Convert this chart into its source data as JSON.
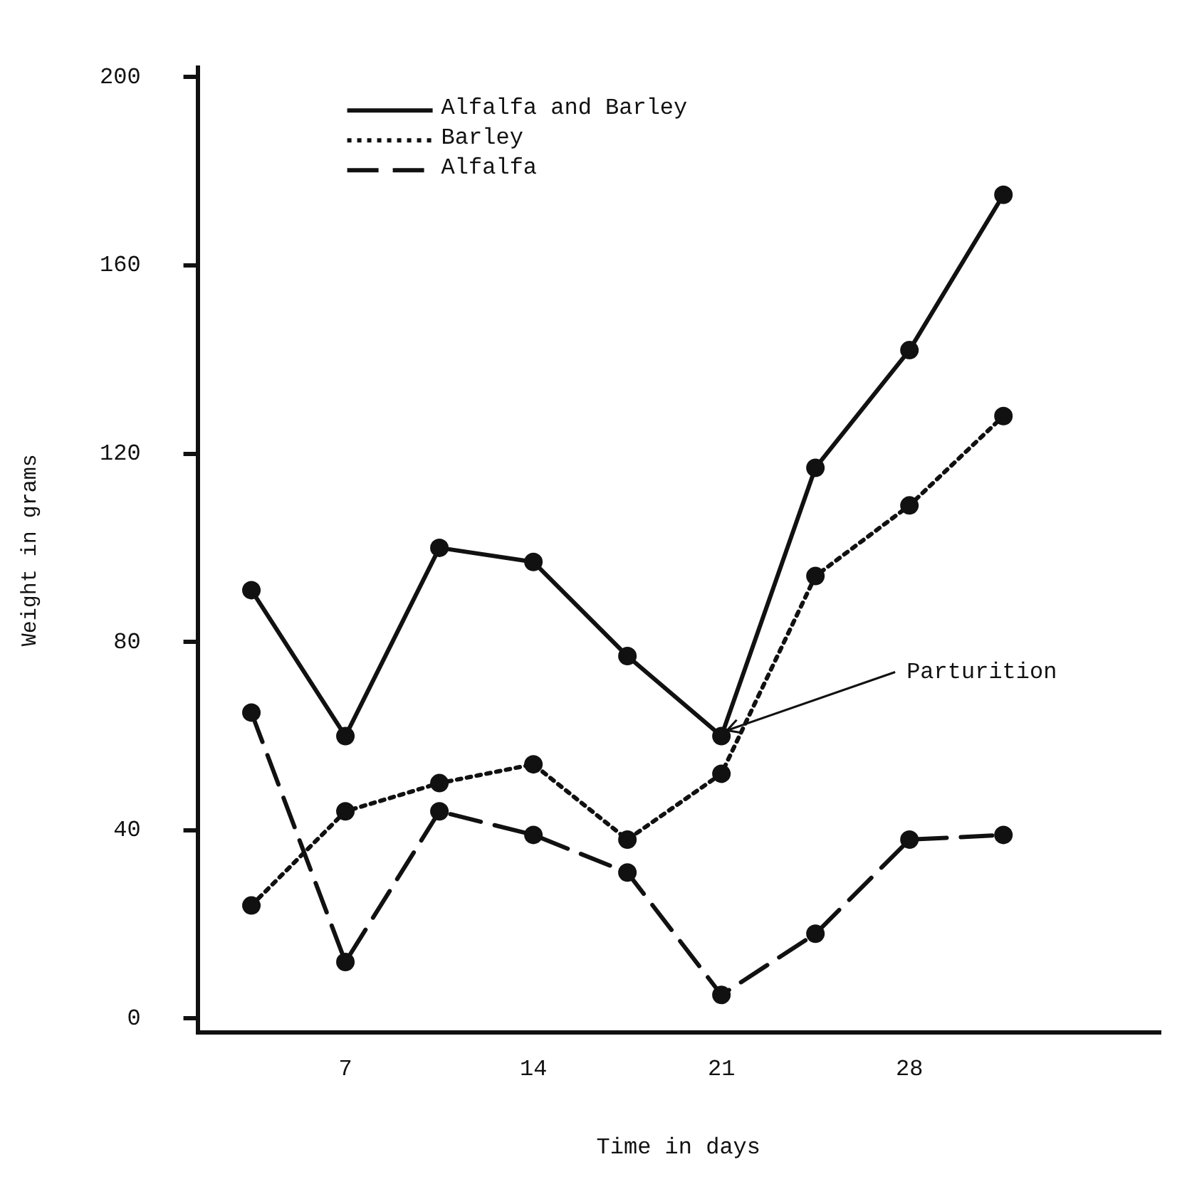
{
  "chart_data": {
    "type": "line",
    "xlabel": "Time in days",
    "ylabel": "Weight in grams",
    "x": [
      3.5,
      7,
      10.5,
      14,
      17.5,
      21,
      24.5,
      28,
      31.5
    ],
    "series": [
      {
        "name": "Alfalfa and Barley",
        "color": "#111111",
        "line_style": "solid",
        "values": [
          91,
          60,
          100,
          97,
          77,
          60,
          117,
          142,
          175
        ]
      },
      {
        "name": "Barley",
        "color": "#111111",
        "line_style": "dotted",
        "values": [
          24,
          44,
          50,
          54,
          38,
          52,
          94,
          109,
          128
        ]
      },
      {
        "name": "Alfalfa",
        "color": "#111111",
        "line_style": "dashed",
        "values": [
          65,
          12,
          44,
          39,
          31,
          5,
          18,
          38,
          39
        ]
      }
    ],
    "xlim": [
      1.5,
      37.3
    ],
    "xticks": [
      7,
      14,
      21,
      28
    ],
    "ylim": [
      -3,
      202
    ],
    "yticks": [
      0,
      40,
      80,
      120,
      160,
      200
    ],
    "grid": false,
    "legend": "top left",
    "marker": "circle",
    "annotations": [
      {
        "text": "Parturition",
        "x": 21,
        "y": 60
      }
    ]
  }
}
